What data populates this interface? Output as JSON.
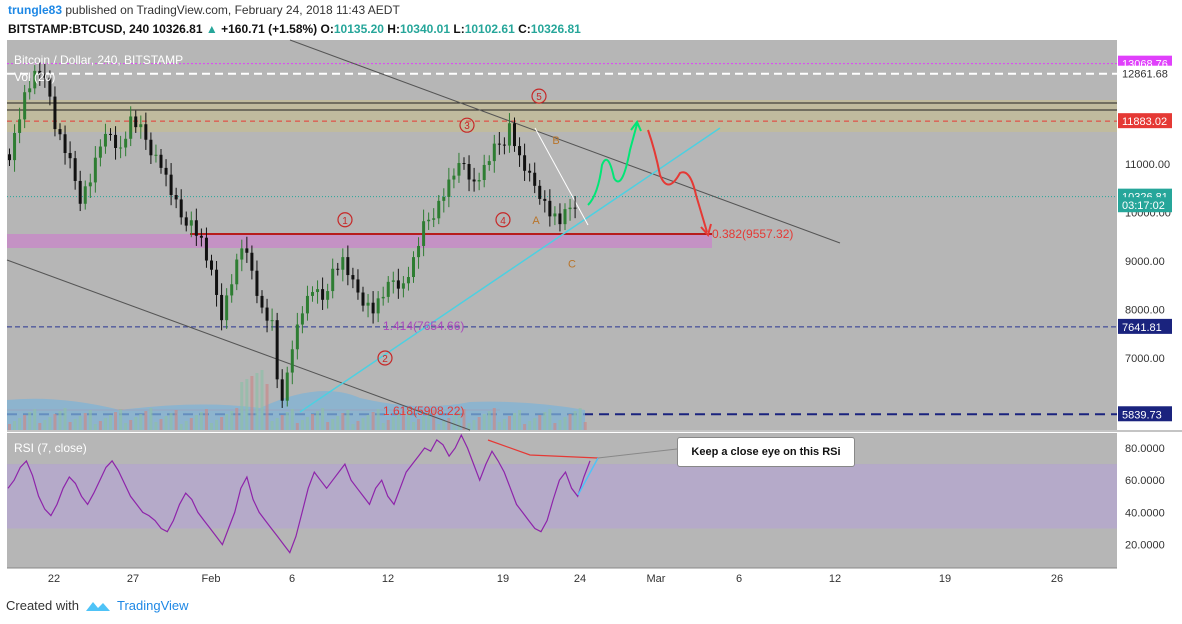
{
  "header": {
    "user": "trungle83",
    "published": "published on TradingView.com, February 24, 2018 11:43 AEDT",
    "symbol": "BITSTAMP:BTCUSD, 240",
    "last": "10326.81",
    "change": "+160.71 (+1.58%)",
    "o_label": "O:",
    "o": "10135.20",
    "h_label": "H:",
    "h": "10340.01",
    "l_label": "L:",
    "l": "10102.61",
    "c_label": "C:",
    "c": "10326.81"
  },
  "footer": {
    "created_with": "Created with",
    "brand": "TradingView"
  },
  "callout": {
    "text": "Keep a close eye on this RSi"
  },
  "chart_data": {
    "type": "candlestick",
    "title": "Bitcoin / Dollar, 240, BITSTAMP",
    "volume_label": "Vol (20)",
    "x_ticks": [
      "22",
      "27",
      "Feb",
      "6",
      "12",
      "19",
      "24",
      "Mar",
      "6",
      "12",
      "19",
      "26"
    ],
    "price_axis": {
      "ticks": [
        7000,
        8000,
        9000,
        10000,
        11000
      ],
      "tick_labels": [
        "7000.00",
        "8000.00",
        "9000.00",
        "10000.00",
        "11000.00"
      ],
      "range": [
        5700,
        13300
      ]
    },
    "price_tags": [
      {
        "value": 13068.76,
        "label": "13068.76",
        "color": "#e040fb"
      },
      {
        "value": 12861.68,
        "label": "12861.68",
        "color": "#ffffff"
      },
      {
        "value": 11883.02,
        "label": "11883.02",
        "color": "#e53935"
      },
      {
        "value": 10326.81,
        "label": "10326.81",
        "color": "#26a69a"
      },
      {
        "value": 10150,
        "label": "03:17:02",
        "color": "#26a69a"
      },
      {
        "value": 7641.81,
        "label": "7641.81",
        "color": "#1a237e"
      },
      {
        "value": 5839.73,
        "label": "5839.73",
        "color": "#1a237e"
      }
    ],
    "fib_labels": [
      {
        "text": "0.382(9557.32)",
        "value": 9557.32,
        "color": "#e53935"
      },
      {
        "text": "1.414(7654.66)",
        "value": 7654.66,
        "color": "#ab47bc"
      },
      {
        "text": "1.618(5908.22)",
        "value": 5908.22,
        "color": "#e53935"
      }
    ],
    "wave_labels": [
      {
        "text": "1",
        "price": 9850
      },
      {
        "text": "2",
        "price": 7000
      },
      {
        "text": "3",
        "price": 11800
      },
      {
        "text": "4",
        "price": 9850
      },
      {
        "text": "5",
        "price": 12400
      },
      {
        "text": "A",
        "price": 9850
      },
      {
        "text": "B",
        "price": 11500
      },
      {
        "text": "C",
        "price": 8950
      }
    ],
    "price_path": [
      [
        0,
        11200
      ],
      [
        3,
        12400
      ],
      [
        5,
        12800
      ],
      [
        7,
        12900
      ],
      [
        9,
        11800
      ],
      [
        12,
        11000
      ],
      [
        14,
        10300
      ],
      [
        16,
        10700
      ],
      [
        18,
        11400
      ],
      [
        20,
        11600
      ],
      [
        22,
        11300
      ],
      [
        24,
        11900
      ],
      [
        26,
        11700
      ],
      [
        28,
        11300
      ],
      [
        30,
        11000
      ],
      [
        32,
        10400
      ],
      [
        34,
        9900
      ],
      [
        36,
        9800
      ],
      [
        38,
        9400
      ],
      [
        40,
        8700
      ],
      [
        42,
        7900
      ],
      [
        44,
        8600
      ],
      [
        46,
        9300
      ],
      [
        48,
        8800
      ],
      [
        50,
        8000
      ],
      [
        52,
        7700
      ],
      [
        53,
        6600
      ],
      [
        54,
        6000
      ],
      [
        55,
        6700
      ],
      [
        56,
        7300
      ],
      [
        58,
        8000
      ],
      [
        60,
        8400
      ],
      [
        62,
        8200
      ],
      [
        64,
        8800
      ],
      [
        66,
        9000
      ],
      [
        68,
        8500
      ],
      [
        70,
        8200
      ],
      [
        72,
        8000
      ],
      [
        74,
        8300
      ],
      [
        76,
        8600
      ],
      [
        78,
        8500
      ],
      [
        80,
        9000
      ],
      [
        82,
        9700
      ],
      [
        84,
        10000
      ],
      [
        86,
        10400
      ],
      [
        88,
        10800
      ],
      [
        90,
        11000
      ],
      [
        92,
        10600
      ],
      [
        94,
        10900
      ],
      [
        96,
        11300
      ],
      [
        98,
        11500
      ],
      [
        99,
        11800
      ],
      [
        101,
        11100
      ],
      [
        103,
        10700
      ],
      [
        105,
        10400
      ],
      [
        107,
        10000
      ],
      [
        109,
        9800
      ],
      [
        111,
        10100
      ],
      [
        113,
        10326
      ]
    ],
    "rsi": {
      "label": "RSI (7, close)",
      "ticks": [
        20,
        40,
        60,
        80
      ],
      "tick_labels": [
        "20.0000",
        "40.0000",
        "60.0000",
        "80.0000"
      ],
      "band": [
        30,
        70
      ],
      "values": [
        55,
        60,
        68,
        72,
        63,
        50,
        42,
        38,
        45,
        55,
        62,
        58,
        50,
        45,
        52,
        60,
        68,
        72,
        66,
        58,
        50,
        45,
        40,
        38,
        35,
        30,
        28,
        35,
        45,
        52,
        48,
        40,
        35,
        30,
        25,
        20,
        30,
        40,
        55,
        62,
        48,
        40,
        35,
        30,
        25,
        20,
        15,
        25,
        40,
        55,
        65,
        60,
        55,
        60,
        65,
        70,
        60,
        55,
        50,
        45,
        55,
        60,
        50,
        45,
        55,
        65,
        70,
        75,
        80,
        78,
        85,
        82,
        75,
        80,
        88,
        80,
        70,
        60,
        70,
        78,
        72,
        65,
        55,
        45,
        40,
        35,
        30,
        28,
        35,
        48,
        60,
        65,
        55,
        50,
        62,
        72
      ]
    }
  }
}
